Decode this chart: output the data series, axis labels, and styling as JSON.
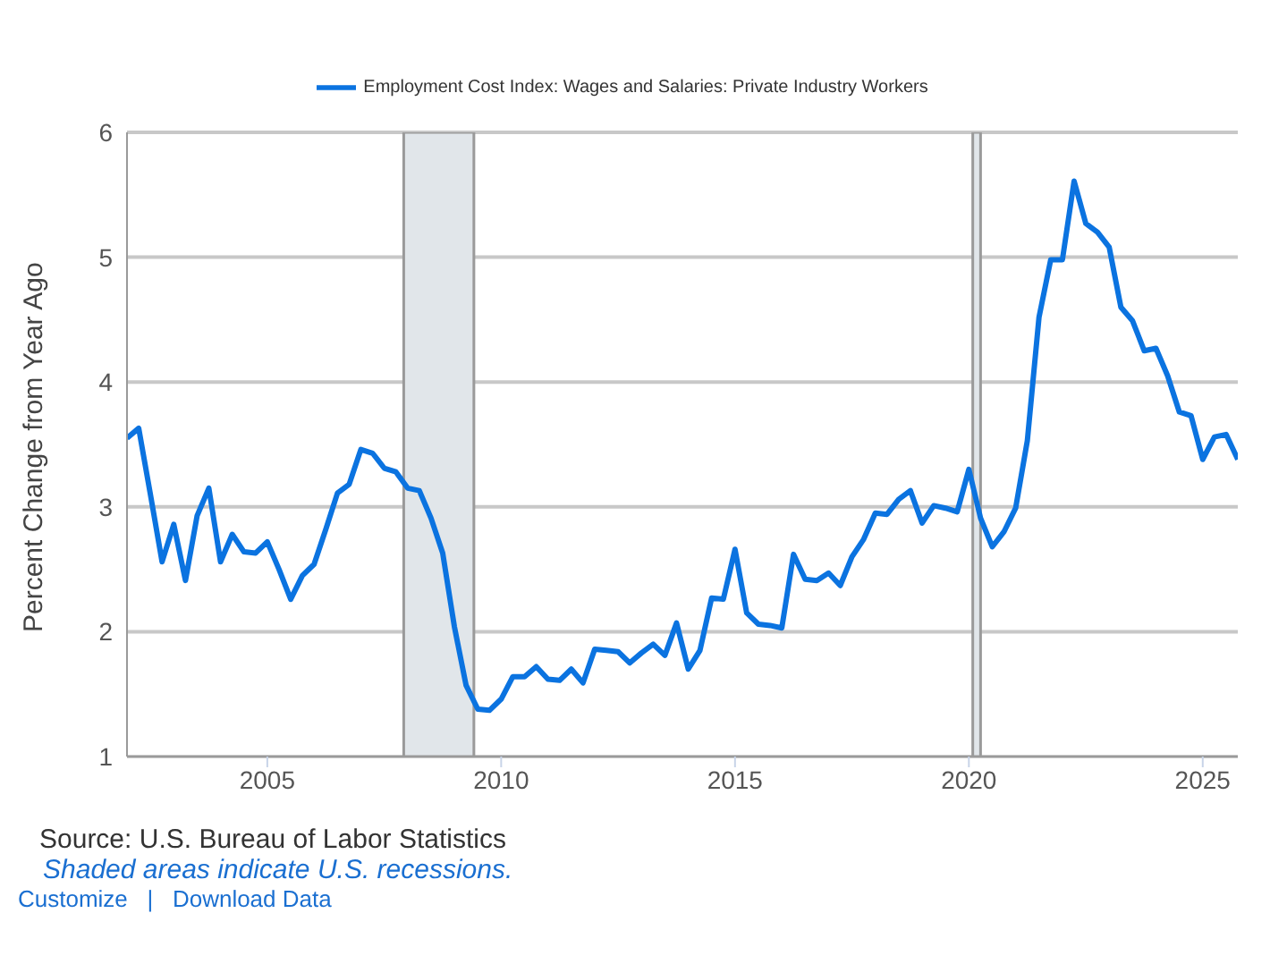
{
  "chart_data": {
    "type": "line",
    "ylabel": "Percent Change from Year Ago",
    "x": [
      "2002-01",
      "2002-04",
      "2002-07",
      "2002-10",
      "2003-01",
      "2003-04",
      "2003-07",
      "2003-10",
      "2004-01",
      "2004-04",
      "2004-07",
      "2004-10",
      "2005-01",
      "2005-04",
      "2005-07",
      "2005-10",
      "2006-01",
      "2006-04",
      "2006-07",
      "2006-10",
      "2007-01",
      "2007-04",
      "2007-07",
      "2007-10",
      "2008-01",
      "2008-04",
      "2008-07",
      "2008-10",
      "2009-01",
      "2009-04",
      "2009-07",
      "2009-10",
      "2010-01",
      "2010-04",
      "2010-07",
      "2010-10",
      "2011-01",
      "2011-04",
      "2011-07",
      "2011-10",
      "2012-01",
      "2012-04",
      "2012-07",
      "2012-10",
      "2013-01",
      "2013-04",
      "2013-07",
      "2013-10",
      "2014-01",
      "2014-04",
      "2014-07",
      "2014-10",
      "2015-01",
      "2015-04",
      "2015-07",
      "2015-10",
      "2016-01",
      "2016-04",
      "2016-07",
      "2016-10",
      "2017-01",
      "2017-04",
      "2017-07",
      "2017-10",
      "2018-01",
      "2018-04",
      "2018-07",
      "2018-10",
      "2019-01",
      "2019-04",
      "2019-07",
      "2019-10",
      "2020-01",
      "2020-04",
      "2020-07",
      "2020-10",
      "2021-01",
      "2021-04",
      "2021-07",
      "2021-10",
      "2022-01",
      "2022-04",
      "2022-07",
      "2022-10",
      "2023-01",
      "2023-04",
      "2023-07",
      "2023-10",
      "2024-01",
      "2024-04",
      "2024-07",
      "2024-10",
      "2025-01",
      "2025-04",
      "2025-07",
      "2025-10"
    ],
    "series": [
      {
        "name": "Employment Cost Index: Wages and Salaries: Private Industry Workers",
        "color": "#0b73e0",
        "values": [
          3.55,
          3.63,
          3.1,
          2.56,
          2.86,
          2.41,
          2.93,
          3.15,
          2.56,
          2.78,
          2.64,
          2.63,
          2.72,
          2.5,
          2.26,
          2.45,
          2.54,
          2.82,
          3.11,
          3.18,
          3.46,
          3.43,
          3.31,
          3.28,
          3.15,
          3.13,
          2.91,
          2.63,
          2.04,
          1.57,
          1.38,
          1.37,
          1.46,
          1.64,
          1.64,
          1.72,
          1.62,
          1.61,
          1.7,
          1.59,
          1.86,
          1.85,
          1.84,
          1.75,
          1.83,
          1.9,
          1.81,
          2.07,
          1.7,
          1.85,
          2.27,
          2.26,
          2.66,
          2.15,
          2.06,
          2.05,
          2.03,
          2.62,
          2.42,
          2.41,
          2.47,
          2.37,
          2.6,
          2.74,
          2.95,
          2.94,
          3.06,
          3.13,
          2.87,
          3.01,
          2.99,
          2.96,
          3.3,
          2.91,
          2.68,
          2.8,
          2.99,
          3.53,
          4.52,
          4.98,
          4.98,
          5.61,
          5.27,
          5.2,
          5.08,
          4.6,
          4.49,
          4.25,
          4.27,
          4.05,
          3.76,
          3.73,
          3.38,
          3.56,
          3.58,
          3.38
        ]
      }
    ],
    "xlim": [
      "2002-01",
      "2025-10"
    ],
    "xticks": [
      "2005",
      "2010",
      "2015",
      "2020",
      "2025"
    ],
    "ylim": [
      1,
      6
    ],
    "yticks": [
      1,
      2,
      3,
      4,
      5,
      6
    ],
    "bands": [
      {
        "axis": "x",
        "from": "2007-12",
        "to": "2009-06",
        "color": "#e1e6ea"
      },
      {
        "axis": "x",
        "from": "2020-02",
        "to": "2020-04",
        "color": "#e1e6ea"
      }
    ],
    "grid": "y",
    "legend": "top",
    "marker": "none",
    "line_style": "solid",
    "annotations": [
      "Source: U.S. Bureau of Labor Statistics",
      "Shaded areas indicate U.S. recessions.",
      "Customize | Download Data"
    ]
  }
}
